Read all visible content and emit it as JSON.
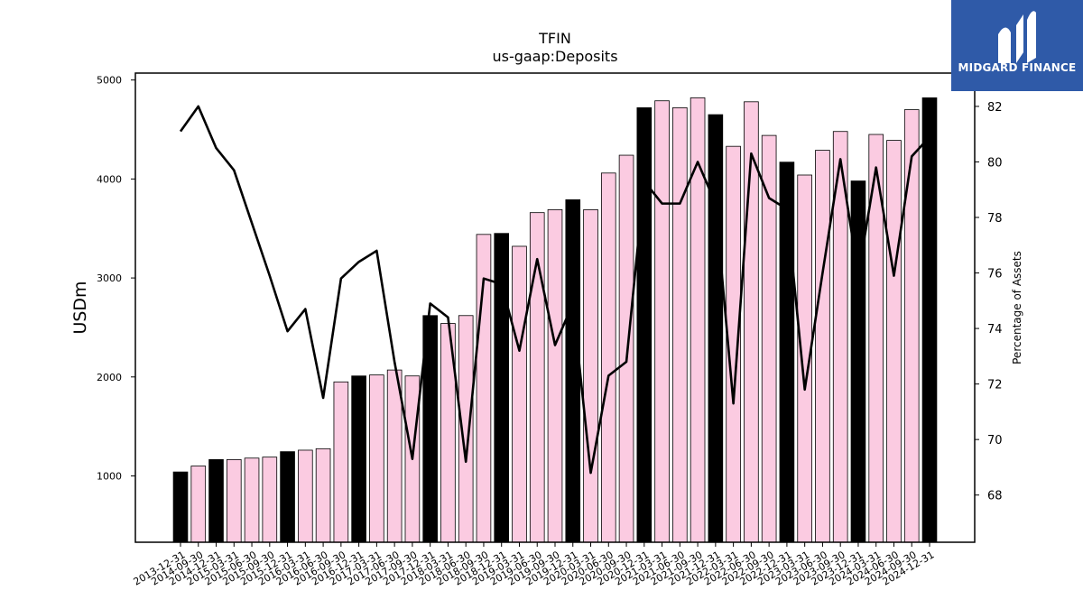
{
  "chart_data": {
    "type": "bar",
    "title": "TFIN",
    "subtitle": "us-gaap:Deposits",
    "ylabel": "USDm",
    "y2label": "Percentage of Assets",
    "ylim": [
      330,
      5070
    ],
    "y2lim": [
      66.3,
      83.2
    ],
    "yticks": [
      1000,
      2000,
      3000,
      4000,
      5000
    ],
    "y2ticks": [
      68,
      70,
      72,
      74,
      76,
      78,
      80,
      82
    ],
    "categories": [
      "2013-12-31",
      "2014-09-30",
      "2014-12-31",
      "2015-03-31",
      "2015-06-30",
      "2015-09-30",
      "2015-12-31",
      "2016-03-31",
      "2016-06-30",
      "2016-09-30",
      "2016-12-31",
      "2017-03-31",
      "2017-06-30",
      "2017-09-30",
      "2017-12-31",
      "2018-03-31",
      "2018-06-30",
      "2018-09-30",
      "2018-12-31",
      "2019-03-31",
      "2019-06-30",
      "2019-09-30",
      "2019-12-31",
      "2020-03-31",
      "2020-06-30",
      "2020-09-30",
      "2020-12-31",
      "2021-03-31",
      "2021-06-30",
      "2021-09-30",
      "2021-12-31",
      "2022-03-31",
      "2022-06-30",
      "2022-09-30",
      "2022-12-31",
      "2023-03-31",
      "2023-06-30",
      "2023-09-30",
      "2023-12-31",
      "2024-03-31",
      "2024-06-30",
      "2024-09-30",
      "2024-12-31"
    ],
    "series": [
      {
        "kind": "bar",
        "values": [
          1040,
          1100,
          1165,
          1165,
          1180,
          1190,
          1245,
          1260,
          1275,
          1950,
          2010,
          2020,
          2070,
          2010,
          2620,
          2540,
          2620,
          3440,
          3450,
          3320,
          3660,
          3690,
          3790,
          3690,
          4060,
          4240,
          4720,
          4790,
          4720,
          4820,
          4650,
          4330,
          4780,
          4440,
          4170,
          4040,
          4290,
          4480,
          3980,
          4450,
          4390,
          4700,
          4820
        ],
        "highlight": [
          true,
          false,
          true,
          false,
          false,
          false,
          true,
          false,
          false,
          false,
          true,
          false,
          false,
          false,
          true,
          false,
          false,
          false,
          true,
          false,
          false,
          false,
          true,
          false,
          false,
          false,
          true,
          false,
          false,
          false,
          true,
          false,
          false,
          false,
          true,
          false,
          false,
          false,
          true,
          false,
          false,
          false,
          true
        ]
      },
      {
        "kind": "line",
        "values": [
          81.1,
          82.0,
          80.5,
          79.7,
          77.8,
          75.9,
          73.9,
          74.7,
          71.5,
          75.8,
          76.4,
          76.8,
          72.8,
          69.3,
          74.9,
          74.4,
          69.2,
          75.8,
          75.6,
          73.2,
          76.5,
          73.4,
          74.9,
          68.8,
          72.3,
          72.8,
          79.3,
          78.5,
          78.5,
          80.0,
          78.5,
          71.3,
          80.3,
          78.7,
          78.3,
          71.8,
          76.0,
          80.1,
          75.9,
          79.8,
          75.9,
          80.2,
          80.9
        ]
      }
    ],
    "colors": {
      "bar_default": "#fbcbe1",
      "bar_highlight": "#000000",
      "line": "#000000"
    },
    "grid": false
  },
  "logo": {
    "text": "MIDGARD FINANCE"
  }
}
